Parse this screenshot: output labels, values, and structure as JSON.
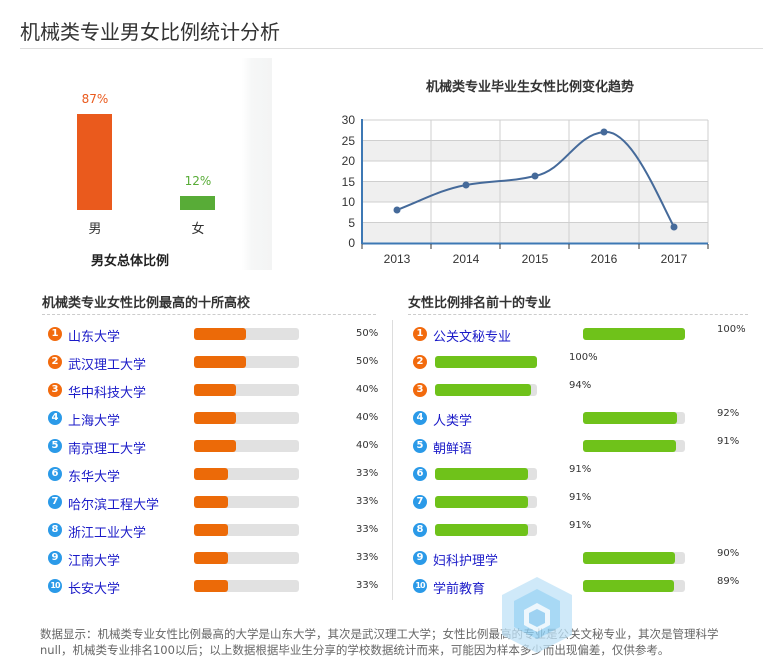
{
  "page": {
    "title": "机械类专业男女比例统计分析"
  },
  "gender": {
    "caption": "男女总体比例",
    "bars": [
      {
        "label": "男",
        "value": "87%",
        "color": "#ea5a1d"
      },
      {
        "label": "女",
        "value": "12%",
        "color": "#58ac37"
      }
    ]
  },
  "trend": {
    "title": "机械类专业毕业生女性比例变化趋势"
  },
  "chart_data": [
    {
      "type": "bar",
      "title": "男女总体比例",
      "categories": [
        "男",
        "女"
      ],
      "values": [
        87,
        12
      ],
      "unit": "%"
    },
    {
      "type": "line",
      "title": "机械类专业毕业生女性比例变化趋势",
      "x": [
        "2013",
        "2014",
        "2015",
        "2016",
        "2017"
      ],
      "values": [
        8,
        14,
        16,
        27,
        4
      ],
      "ylim": [
        0,
        30
      ],
      "yticks": [
        0,
        5,
        10,
        15,
        20,
        25,
        30
      ],
      "grid": true,
      "line_color": "#456a9a"
    }
  ],
  "schools": {
    "title": "机械类专业女性比例最高的十所高校",
    "items": [
      {
        "rank": "1",
        "name": "山东大学",
        "pct": "50%",
        "value": 50
      },
      {
        "rank": "2",
        "name": "武汉理工大学",
        "pct": "50%",
        "value": 50
      },
      {
        "rank": "3",
        "name": "华中科技大学",
        "pct": "40%",
        "value": 40
      },
      {
        "rank": "4",
        "name": "上海大学",
        "pct": "40%",
        "value": 40
      },
      {
        "rank": "5",
        "name": "南京理工大学",
        "pct": "40%",
        "value": 40
      },
      {
        "rank": "6",
        "name": "东华大学",
        "pct": "33%",
        "value": 33
      },
      {
        "rank": "7",
        "name": "哈尔滨工程大学",
        "pct": "33%",
        "value": 33
      },
      {
        "rank": "8",
        "name": "浙江工业大学",
        "pct": "33%",
        "value": 33
      },
      {
        "rank": "9",
        "name": "江南大学",
        "pct": "33%",
        "value": 33
      },
      {
        "rank": "10",
        "name": "长安大学",
        "pct": "33%",
        "value": 33
      }
    ]
  },
  "majors": {
    "title": "女性比例排名前十的专业",
    "items": [
      {
        "rank": "1",
        "name": "公关文秘专业",
        "pct": "100%",
        "value": 100
      },
      {
        "rank": "2",
        "name": "",
        "pct": "100%",
        "value": 100
      },
      {
        "rank": "3",
        "name": "",
        "pct": "94%",
        "value": 94
      },
      {
        "rank": "4",
        "name": "人类学",
        "pct": "92%",
        "value": 92
      },
      {
        "rank": "5",
        "name": "朝鲜语",
        "pct": "91%",
        "value": 91
      },
      {
        "rank": "6",
        "name": "",
        "pct": "91%",
        "value": 91
      },
      {
        "rank": "7",
        "name": "",
        "pct": "91%",
        "value": 91
      },
      {
        "rank": "8",
        "name": "",
        "pct": "91%",
        "value": 91
      },
      {
        "rank": "9",
        "name": "妇科护理学",
        "pct": "90%",
        "value": 90
      },
      {
        "rank": "10",
        "name": "学前教育",
        "pct": "89%",
        "value": 89
      }
    ]
  },
  "footnote": "数据显示：机械类专业女性比例最高的大学是山东大学，其次是武汉理工大学；女性比例最高的专业是公关文秘专业，其次是管理科学null，机械类专业排名100以后；以上数据根据毕业生分享的学校数据统计而来，可能因为样本多少而出现偏差，仅供参考。"
}
